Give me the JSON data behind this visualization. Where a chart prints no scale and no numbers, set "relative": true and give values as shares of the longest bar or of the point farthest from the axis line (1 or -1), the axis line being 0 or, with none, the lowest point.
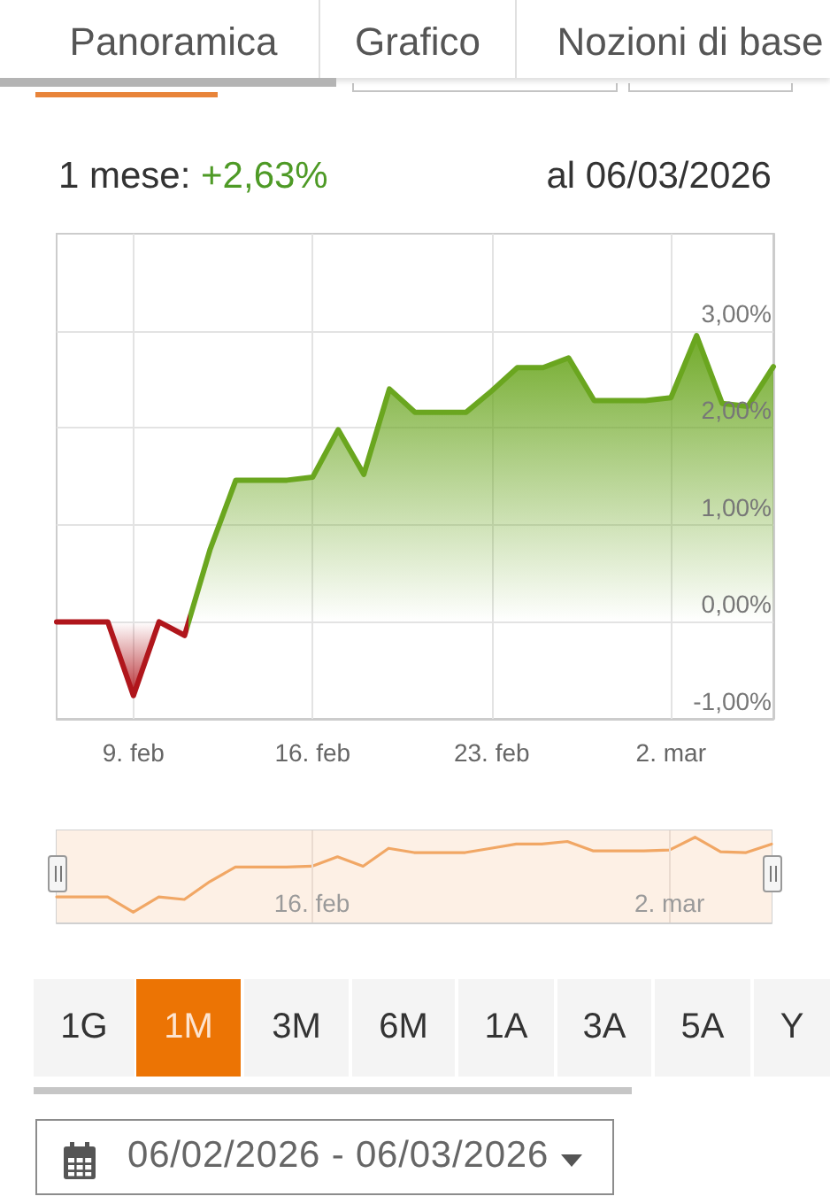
{
  "chart_data": [
    {
      "type": "area",
      "title": "1 mese: +2,63%",
      "subtitle": "al 06/03/2026",
      "annotations": [
        "Panoramica",
        "Grafico",
        "Nozioni di base",
        "1G",
        "1M",
        "3M",
        "6M",
        "1A",
        "3A",
        "5A",
        "Y",
        "06/02/2026 - 06/03/2026"
      ],
      "x": [
        "2026-02-06",
        "2026-02-07",
        "2026-02-08",
        "2026-02-09",
        "2026-02-10",
        "2026-02-11",
        "2026-02-12",
        "2026-02-13",
        "2026-02-14",
        "2026-02-15",
        "2026-02-16",
        "2026-02-17",
        "2026-02-18",
        "2026-02-19",
        "2026-02-20",
        "2026-02-21",
        "2026-02-22",
        "2026-02-23",
        "2026-02-24",
        "2026-02-25",
        "2026-02-26",
        "2026-02-27",
        "2026-02-28",
        "2026-03-01",
        "2026-03-02",
        "2026-03-03",
        "2026-03-04",
        "2026-03-05",
        "2026-03-06"
      ],
      "values": [
        0,
        0,
        0,
        -0.76,
        0,
        -0.14,
        0.75,
        1.46,
        1.46,
        1.46,
        1.49,
        1.98,
        1.52,
        2.4,
        2.16,
        2.16,
        2.16,
        2.38,
        2.62,
        2.62,
        2.72,
        2.28,
        2.28,
        2.28,
        2.31,
        2.95,
        2.25,
        2.22,
        2.63
      ],
      "colors": [
        "#b0161c",
        "#b0161c",
        "#b0161c",
        "#b0161c",
        "#b0161c",
        "#b0161c",
        "#6aa61f",
        "#6aa61f",
        "#6aa61f",
        "#6aa61f",
        "#6aa61f",
        "#6aa61f",
        "#6aa61f",
        "#6aa61f",
        "#6aa61f",
        "#6aa61f",
        "#6aa61f",
        "#6aa61f",
        "#6aa61f",
        "#6aa61f",
        "#6aa61f",
        "#6aa61f",
        "#6aa61f",
        "#6aa61f",
        "#6aa61f",
        "#6aa61f",
        "#6aa61f",
        "#6aa61f",
        "#6aa61f"
      ],
      "xlim": [
        "2026-02-06",
        "2026-03-06"
      ],
      "xticks": [
        {
          "value": "2026-02-09",
          "label": "9. feb"
        },
        {
          "value": "2026-02-16",
          "label": "16. feb"
        },
        {
          "value": "2026-02-23",
          "label": "23. feb"
        },
        {
          "value": "2026-03-02",
          "label": "2. mar"
        }
      ],
      "ylim": [
        -1,
        4
      ],
      "yticks": [
        {
          "value": -1,
          "label": "-1,00%"
        },
        {
          "value": 0,
          "label": "0,00%"
        },
        {
          "value": 1,
          "label": "1,00%"
        },
        {
          "value": 2,
          "label": "2,00%"
        },
        {
          "value": 3,
          "label": "3,00%"
        }
      ],
      "grid": true
    },
    {
      "type": "line",
      "relative": true,
      "color": "#f1a765",
      "x": [
        "2026-02-06",
        "2026-02-07",
        "2026-02-08",
        "2026-02-09",
        "2026-02-10",
        "2026-02-11",
        "2026-02-12",
        "2026-02-13",
        "2026-02-14",
        "2026-02-15",
        "2026-02-16",
        "2026-02-17",
        "2026-02-18",
        "2026-02-19",
        "2026-02-20",
        "2026-02-21",
        "2026-02-22",
        "2026-02-23",
        "2026-02-24",
        "2026-02-25",
        "2026-02-26",
        "2026-02-27",
        "2026-02-28",
        "2026-03-01",
        "2026-03-02",
        "2026-03-03",
        "2026-03-04",
        "2026-03-05",
        "2026-03-06"
      ],
      "values": [
        0.3,
        0.3,
        0.3,
        0.12,
        0.3,
        0.27,
        0.48,
        0.65,
        0.65,
        0.65,
        0.66,
        0.77,
        0.66,
        0.87,
        0.82,
        0.82,
        0.82,
        0.87,
        0.92,
        0.92,
        0.95,
        0.84,
        0.84,
        0.84,
        0.85,
        1,
        0.83,
        0.82,
        0.92
      ],
      "xlim": [
        "2026-02-06",
        "2026-03-06"
      ],
      "xticks": [
        {
          "value": "2026-02-16",
          "label": "16. feb"
        },
        {
          "value": "2026-03-02",
          "label": "2. mar"
        }
      ],
      "grid": "x",
      "bands": [
        {
          "axis": "x",
          "from": "2026-02-06",
          "to": "2026-03-06",
          "color": "#fdf0e5"
        }
      ]
    }
  ]
}
